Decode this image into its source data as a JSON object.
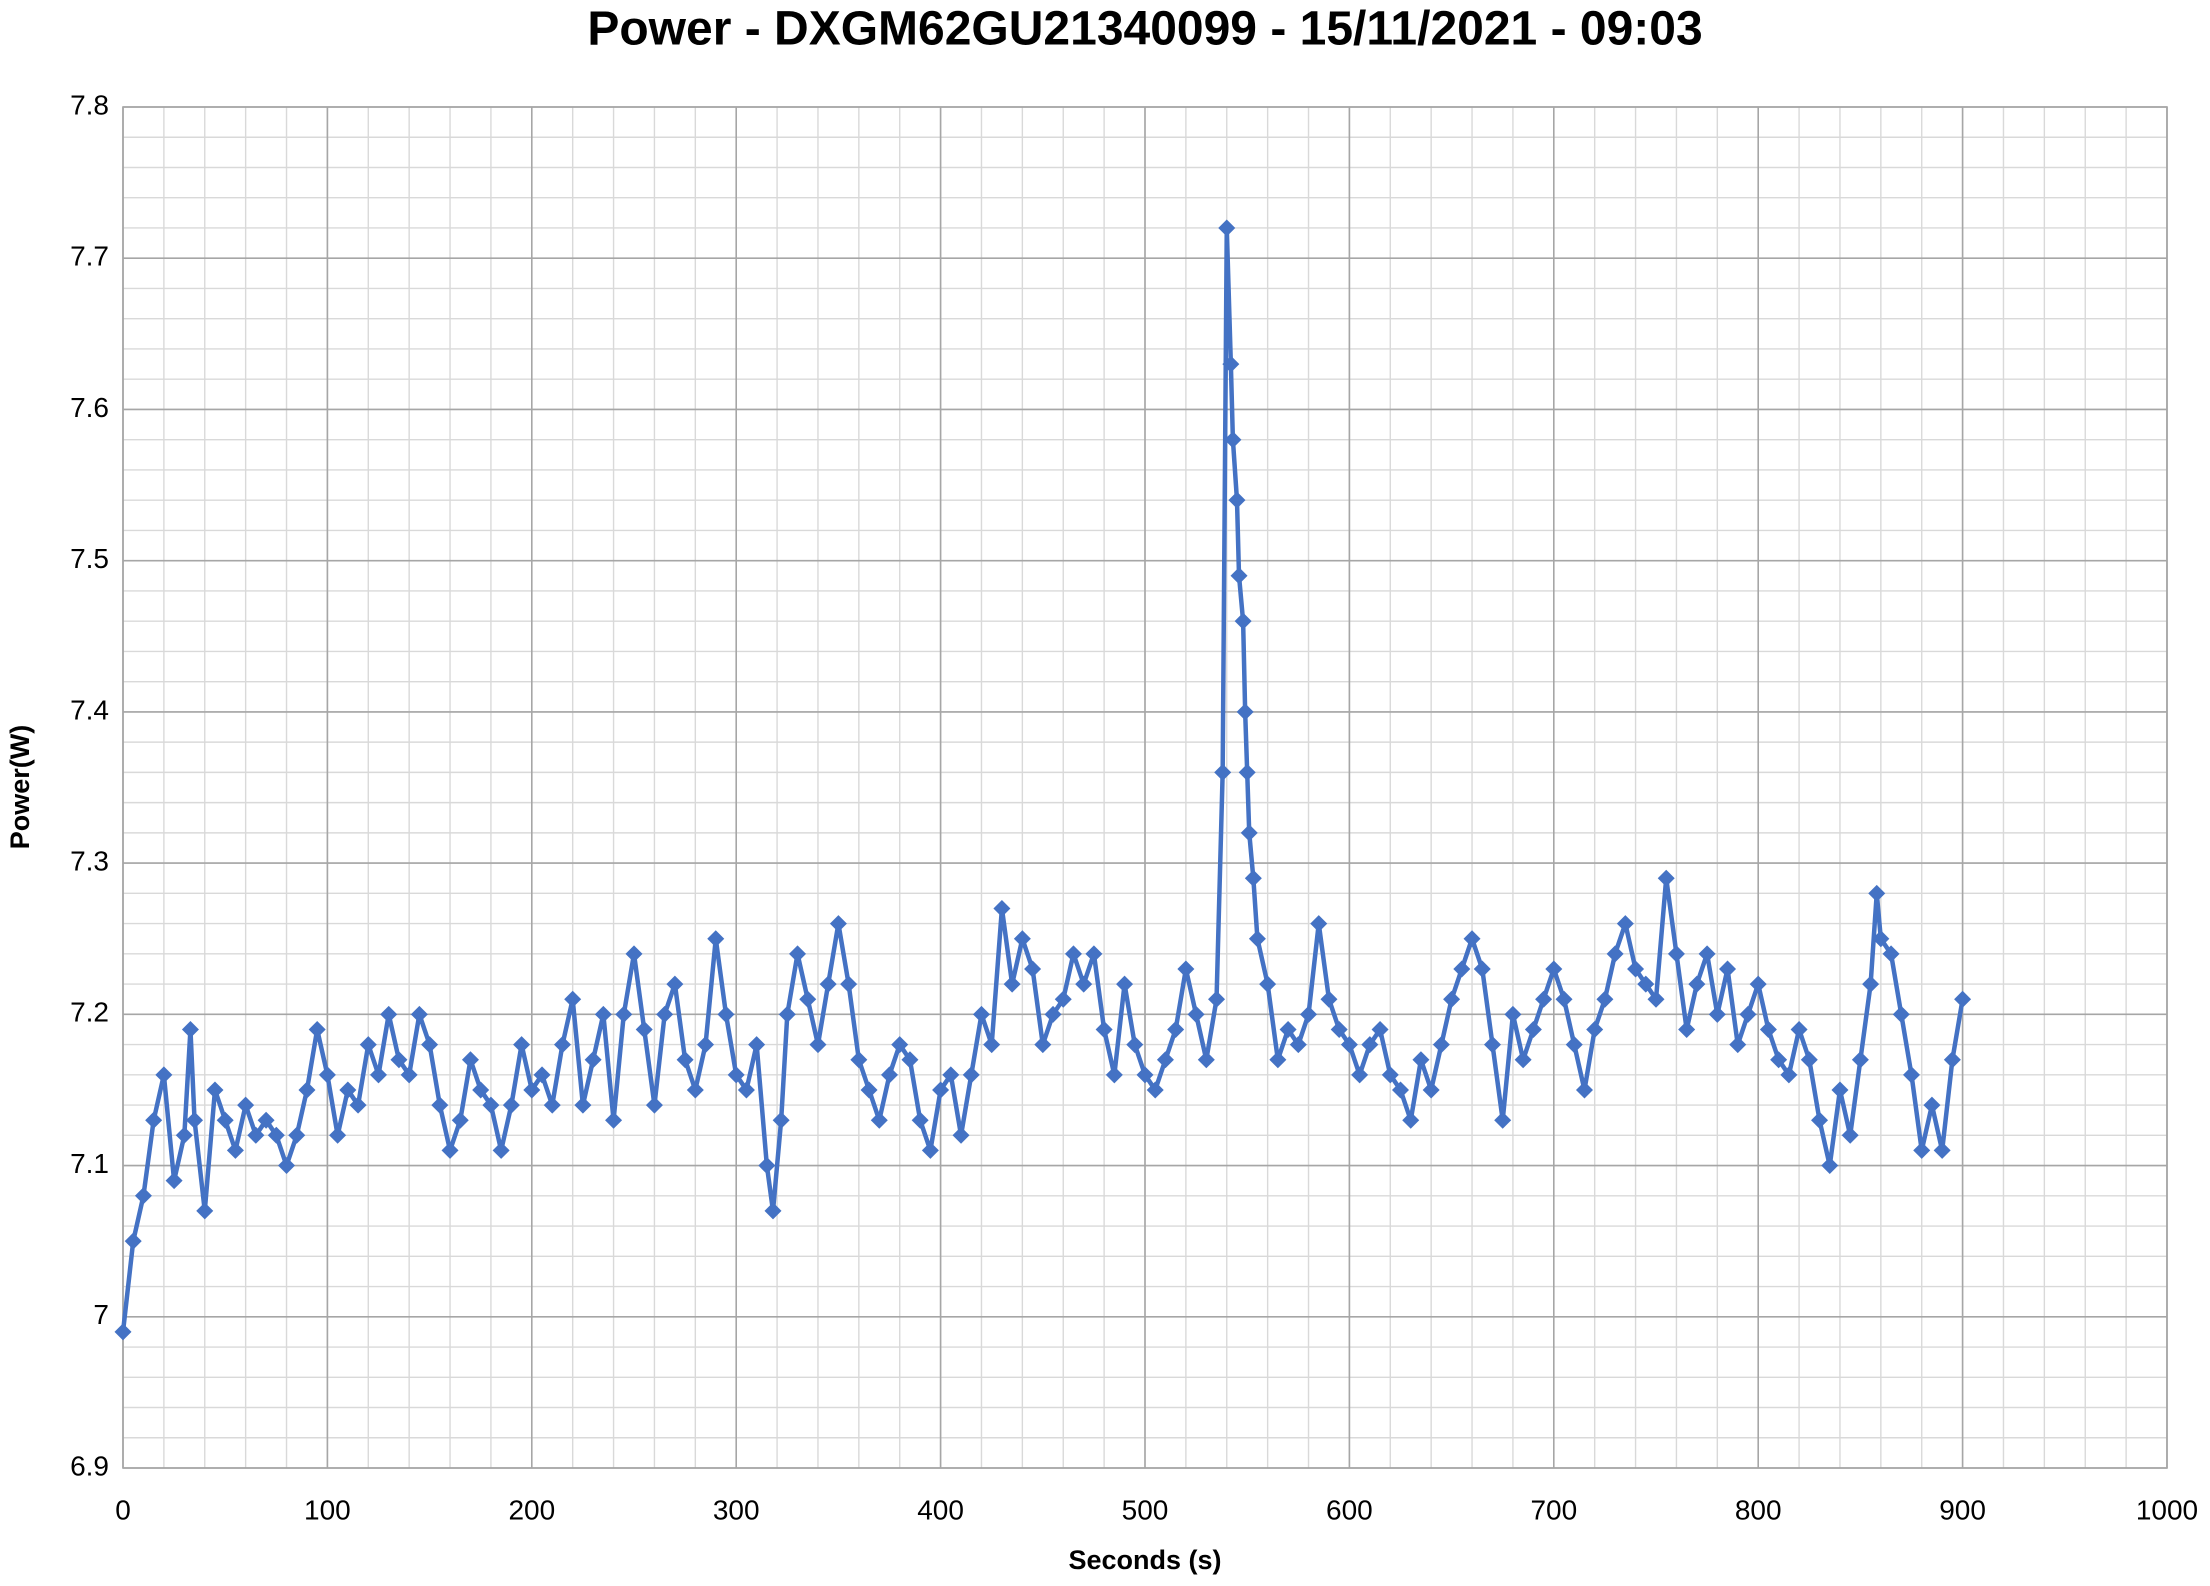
{
  "chart_data": {
    "type": "line",
    "title": "Power - DXGM62GU21340099 - 15/11/2021 - 09:03",
    "x_label": "Seconds (s)",
    "y_label": "Power(W)",
    "color": "#4472c4",
    "marker": "diamond",
    "grid": true,
    "minor_grid_step": {
      "x": 20,
      "y": 0.02
    },
    "xlim": [
      0,
      1000
    ],
    "xticks": [
      0,
      100,
      200,
      300,
      400,
      500,
      600,
      700,
      800,
      900,
      1000
    ],
    "ylim": [
      6.9,
      7.8
    ],
    "yticks": [
      6.9,
      7,
      7.1,
      7.2,
      7.3,
      7.4,
      7.5,
      7.6,
      7.7,
      7.8
    ],
    "x": [
      0,
      5,
      10,
      15,
      20,
      25,
      30,
      33,
      35,
      40,
      45,
      50,
      55,
      60,
      65,
      70,
      75,
      80,
      85,
      90,
      95,
      100,
      105,
      110,
      115,
      120,
      125,
      130,
      135,
      140,
      145,
      150,
      155,
      160,
      165,
      170,
      175,
      180,
      185,
      190,
      195,
      200,
      205,
      210,
      215,
      220,
      225,
      230,
      235,
      240,
      245,
      250,
      255,
      260,
      265,
      270,
      275,
      280,
      285,
      290,
      295,
      300,
      305,
      310,
      315,
      318,
      322,
      325,
      330,
      335,
      340,
      345,
      350,
      355,
      360,
      365,
      370,
      375,
      380,
      385,
      390,
      395,
      400,
      405,
      410,
      415,
      420,
      425,
      430,
      435,
      440,
      445,
      450,
      455,
      460,
      465,
      470,
      475,
      480,
      485,
      490,
      495,
      500,
      505,
      510,
      515,
      520,
      525,
      530,
      535,
      538,
      540,
      542,
      543,
      545,
      546,
      548,
      549,
      550,
      551,
      553,
      555,
      560,
      565,
      570,
      575,
      580,
      585,
      590,
      595,
      600,
      605,
      610,
      615,
      620,
      625,
      630,
      635,
      640,
      645,
      650,
      655,
      660,
      665,
      670,
      675,
      680,
      685,
      690,
      695,
      700,
      705,
      710,
      715,
      720,
      725,
      730,
      735,
      740,
      745,
      750,
      755,
      760,
      765,
      770,
      775,
      780,
      785,
      790,
      795,
      800,
      805,
      810,
      815,
      820,
      825,
      830,
      835,
      840,
      845,
      850,
      855,
      858,
      860,
      865,
      870,
      875,
      880,
      885,
      890,
      895,
      900
    ],
    "values": [
      6.99,
      7.05,
      7.08,
      7.13,
      7.16,
      7.09,
      7.12,
      7.19,
      7.13,
      7.07,
      7.15,
      7.13,
      7.11,
      7.14,
      7.12,
      7.13,
      7.12,
      7.1,
      7.12,
      7.15,
      7.19,
      7.16,
      7.12,
      7.15,
      7.14,
      7.18,
      7.16,
      7.2,
      7.17,
      7.16,
      7.2,
      7.18,
      7.14,
      7.11,
      7.13,
      7.17,
      7.15,
      7.14,
      7.11,
      7.14,
      7.18,
      7.15,
      7.16,
      7.14,
      7.18,
      7.21,
      7.14,
      7.17,
      7.2,
      7.13,
      7.2,
      7.24,
      7.19,
      7.14,
      7.2,
      7.22,
      7.17,
      7.15,
      7.18,
      7.25,
      7.2,
      7.16,
      7.15,
      7.18,
      7.1,
      7.07,
      7.13,
      7.2,
      7.24,
      7.21,
      7.18,
      7.22,
      7.26,
      7.22,
      7.17,
      7.15,
      7.13,
      7.16,
      7.18,
      7.17,
      7.13,
      7.11,
      7.15,
      7.16,
      7.12,
      7.16,
      7.2,
      7.18,
      7.27,
      7.22,
      7.25,
      7.23,
      7.18,
      7.2,
      7.21,
      7.24,
      7.22,
      7.24,
      7.19,
      7.16,
      7.22,
      7.18,
      7.16,
      7.15,
      7.17,
      7.19,
      7.23,
      7.2,
      7.17,
      7.21,
      7.36,
      7.72,
      7.63,
      7.58,
      7.54,
      7.49,
      7.46,
      7.4,
      7.36,
      7.32,
      7.29,
      7.25,
      7.22,
      7.17,
      7.19,
      7.18,
      7.2,
      7.26,
      7.21,
      7.19,
      7.18,
      7.16,
      7.18,
      7.19,
      7.16,
      7.15,
      7.13,
      7.17,
      7.15,
      7.18,
      7.21,
      7.23,
      7.25,
      7.23,
      7.18,
      7.13,
      7.2,
      7.17,
      7.19,
      7.21,
      7.23,
      7.21,
      7.18,
      7.15,
      7.19,
      7.21,
      7.24,
      7.26,
      7.23,
      7.22,
      7.21,
      7.29,
      7.24,
      7.19,
      7.22,
      7.24,
      7.2,
      7.23,
      7.18,
      7.2,
      7.22,
      7.19,
      7.17,
      7.16,
      7.19,
      7.17,
      7.13,
      7.1,
      7.15,
      7.12,
      7.17,
      7.22,
      7.28,
      7.25,
      7.24,
      7.2,
      7.16,
      7.11,
      7.14,
      7.11,
      7.17,
      7.21
    ]
  }
}
